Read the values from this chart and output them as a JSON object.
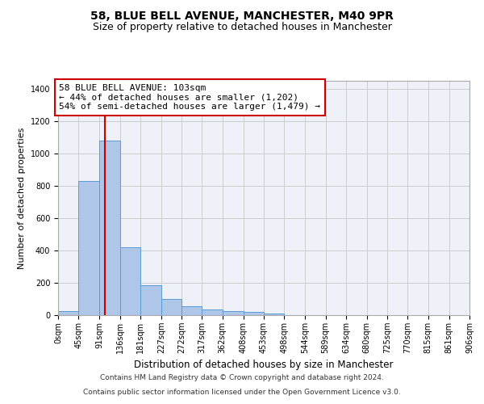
{
  "title": "58, BLUE BELL AVENUE, MANCHESTER, M40 9PR",
  "subtitle": "Size of property relative to detached houses in Manchester",
  "xlabel": "Distribution of detached houses by size in Manchester",
  "ylabel": "Number of detached properties",
  "bar_values": [
    25,
    830,
    1080,
    420,
    185,
    100,
    57,
    35,
    25,
    18,
    10,
    0,
    0,
    0,
    0,
    0,
    0,
    0,
    0,
    0
  ],
  "bin_edges": [
    0,
    45,
    91,
    136,
    181,
    227,
    272,
    317,
    362,
    408,
    453,
    498,
    544,
    589,
    634,
    680,
    725,
    770,
    815,
    861,
    906
  ],
  "tick_labels": [
    "0sqm",
    "45sqm",
    "91sqm",
    "136sqm",
    "181sqm",
    "227sqm",
    "272sqm",
    "317sqm",
    "362sqm",
    "408sqm",
    "453sqm",
    "498sqm",
    "544sqm",
    "589sqm",
    "634sqm",
    "680sqm",
    "725sqm",
    "770sqm",
    "815sqm",
    "861sqm",
    "906sqm"
  ],
  "bar_color": "#aec6e8",
  "bar_edge_color": "#5b9bd5",
  "vline_x": 103,
  "vline_color": "#cc0000",
  "annotation_box_text": "58 BLUE BELL AVENUE: 103sqm\n← 44% of detached houses are smaller (1,202)\n54% of semi-detached houses are larger (1,479) →",
  "annotation_box_color": "#cc0000",
  "annotation_text_color": "#000000",
  "ylim": [
    0,
    1450
  ],
  "yticks": [
    0,
    200,
    400,
    600,
    800,
    1000,
    1200,
    1400
  ],
  "grid_color": "#cccccc",
  "bg_color": "#eef2f8",
  "footnote_line1": "Contains HM Land Registry data © Crown copyright and database right 2024.",
  "footnote_line2": "Contains public sector information licensed under the Open Government Licence v3.0.",
  "title_fontsize": 10,
  "subtitle_fontsize": 9,
  "xlabel_fontsize": 8.5,
  "ylabel_fontsize": 8,
  "tick_fontsize": 7,
  "annotation_fontsize": 8,
  "footnote_fontsize": 6.5
}
